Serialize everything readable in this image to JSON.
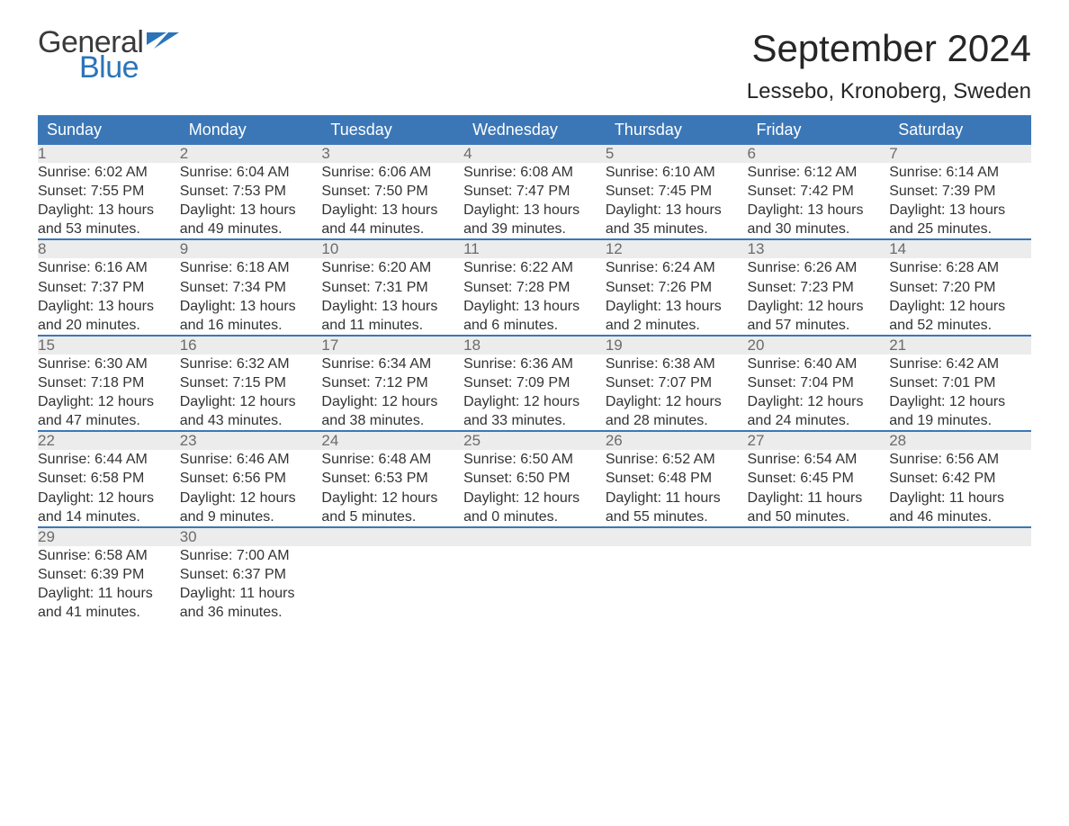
{
  "brand": {
    "word1": "General",
    "word2": "Blue",
    "tri_color": "#2b74b8",
    "word1_color": "#3a3a3a"
  },
  "title": "September 2024",
  "location": "Lessebo, Kronoberg, Sweden",
  "colors": {
    "header_bg": "#3b77b7",
    "header_text": "#ffffff",
    "daynum_bg": "#ececec",
    "daynum_text": "#6b6b6b",
    "body_text": "#333333",
    "rule": "#3b77b7",
    "page_bg": "#ffffff"
  },
  "fonts": {
    "title_size_pt": 32,
    "location_size_pt": 18,
    "th_size_pt": 14,
    "cell_size_pt": 12
  },
  "weekdays": [
    "Sunday",
    "Monday",
    "Tuesday",
    "Wednesday",
    "Thursday",
    "Friday",
    "Saturday"
  ],
  "weeks": [
    [
      {
        "n": "1",
        "sunrise": "Sunrise: 6:02 AM",
        "sunset": "Sunset: 7:55 PM",
        "d1": "Daylight: 13 hours",
        "d2": "and 53 minutes."
      },
      {
        "n": "2",
        "sunrise": "Sunrise: 6:04 AM",
        "sunset": "Sunset: 7:53 PM",
        "d1": "Daylight: 13 hours",
        "d2": "and 49 minutes."
      },
      {
        "n": "3",
        "sunrise": "Sunrise: 6:06 AM",
        "sunset": "Sunset: 7:50 PM",
        "d1": "Daylight: 13 hours",
        "d2": "and 44 minutes."
      },
      {
        "n": "4",
        "sunrise": "Sunrise: 6:08 AM",
        "sunset": "Sunset: 7:47 PM",
        "d1": "Daylight: 13 hours",
        "d2": "and 39 minutes."
      },
      {
        "n": "5",
        "sunrise": "Sunrise: 6:10 AM",
        "sunset": "Sunset: 7:45 PM",
        "d1": "Daylight: 13 hours",
        "d2": "and 35 minutes."
      },
      {
        "n": "6",
        "sunrise": "Sunrise: 6:12 AM",
        "sunset": "Sunset: 7:42 PM",
        "d1": "Daylight: 13 hours",
        "d2": "and 30 minutes."
      },
      {
        "n": "7",
        "sunrise": "Sunrise: 6:14 AM",
        "sunset": "Sunset: 7:39 PM",
        "d1": "Daylight: 13 hours",
        "d2": "and 25 minutes."
      }
    ],
    [
      {
        "n": "8",
        "sunrise": "Sunrise: 6:16 AM",
        "sunset": "Sunset: 7:37 PM",
        "d1": "Daylight: 13 hours",
        "d2": "and 20 minutes."
      },
      {
        "n": "9",
        "sunrise": "Sunrise: 6:18 AM",
        "sunset": "Sunset: 7:34 PM",
        "d1": "Daylight: 13 hours",
        "d2": "and 16 minutes."
      },
      {
        "n": "10",
        "sunrise": "Sunrise: 6:20 AM",
        "sunset": "Sunset: 7:31 PM",
        "d1": "Daylight: 13 hours",
        "d2": "and 11 minutes."
      },
      {
        "n": "11",
        "sunrise": "Sunrise: 6:22 AM",
        "sunset": "Sunset: 7:28 PM",
        "d1": "Daylight: 13 hours",
        "d2": "and 6 minutes."
      },
      {
        "n": "12",
        "sunrise": "Sunrise: 6:24 AM",
        "sunset": "Sunset: 7:26 PM",
        "d1": "Daylight: 13 hours",
        "d2": "and 2 minutes."
      },
      {
        "n": "13",
        "sunrise": "Sunrise: 6:26 AM",
        "sunset": "Sunset: 7:23 PM",
        "d1": "Daylight: 12 hours",
        "d2": "and 57 minutes."
      },
      {
        "n": "14",
        "sunrise": "Sunrise: 6:28 AM",
        "sunset": "Sunset: 7:20 PM",
        "d1": "Daylight: 12 hours",
        "d2": "and 52 minutes."
      }
    ],
    [
      {
        "n": "15",
        "sunrise": "Sunrise: 6:30 AM",
        "sunset": "Sunset: 7:18 PM",
        "d1": "Daylight: 12 hours",
        "d2": "and 47 minutes."
      },
      {
        "n": "16",
        "sunrise": "Sunrise: 6:32 AM",
        "sunset": "Sunset: 7:15 PM",
        "d1": "Daylight: 12 hours",
        "d2": "and 43 minutes."
      },
      {
        "n": "17",
        "sunrise": "Sunrise: 6:34 AM",
        "sunset": "Sunset: 7:12 PM",
        "d1": "Daylight: 12 hours",
        "d2": "and 38 minutes."
      },
      {
        "n": "18",
        "sunrise": "Sunrise: 6:36 AM",
        "sunset": "Sunset: 7:09 PM",
        "d1": "Daylight: 12 hours",
        "d2": "and 33 minutes."
      },
      {
        "n": "19",
        "sunrise": "Sunrise: 6:38 AM",
        "sunset": "Sunset: 7:07 PM",
        "d1": "Daylight: 12 hours",
        "d2": "and 28 minutes."
      },
      {
        "n": "20",
        "sunrise": "Sunrise: 6:40 AM",
        "sunset": "Sunset: 7:04 PM",
        "d1": "Daylight: 12 hours",
        "d2": "and 24 minutes."
      },
      {
        "n": "21",
        "sunrise": "Sunrise: 6:42 AM",
        "sunset": "Sunset: 7:01 PM",
        "d1": "Daylight: 12 hours",
        "d2": "and 19 minutes."
      }
    ],
    [
      {
        "n": "22",
        "sunrise": "Sunrise: 6:44 AM",
        "sunset": "Sunset: 6:58 PM",
        "d1": "Daylight: 12 hours",
        "d2": "and 14 minutes."
      },
      {
        "n": "23",
        "sunrise": "Sunrise: 6:46 AM",
        "sunset": "Sunset: 6:56 PM",
        "d1": "Daylight: 12 hours",
        "d2": "and 9 minutes."
      },
      {
        "n": "24",
        "sunrise": "Sunrise: 6:48 AM",
        "sunset": "Sunset: 6:53 PM",
        "d1": "Daylight: 12 hours",
        "d2": "and 5 minutes."
      },
      {
        "n": "25",
        "sunrise": "Sunrise: 6:50 AM",
        "sunset": "Sunset: 6:50 PM",
        "d1": "Daylight: 12 hours",
        "d2": "and 0 minutes."
      },
      {
        "n": "26",
        "sunrise": "Sunrise: 6:52 AM",
        "sunset": "Sunset: 6:48 PM",
        "d1": "Daylight: 11 hours",
        "d2": "and 55 minutes."
      },
      {
        "n": "27",
        "sunrise": "Sunrise: 6:54 AM",
        "sunset": "Sunset: 6:45 PM",
        "d1": "Daylight: 11 hours",
        "d2": "and 50 minutes."
      },
      {
        "n": "28",
        "sunrise": "Sunrise: 6:56 AM",
        "sunset": "Sunset: 6:42 PM",
        "d1": "Daylight: 11 hours",
        "d2": "and 46 minutes."
      }
    ],
    [
      {
        "n": "29",
        "sunrise": "Sunrise: 6:58 AM",
        "sunset": "Sunset: 6:39 PM",
        "d1": "Daylight: 11 hours",
        "d2": "and 41 minutes."
      },
      {
        "n": "30",
        "sunrise": "Sunrise: 7:00 AM",
        "sunset": "Sunset: 6:37 PM",
        "d1": "Daylight: 11 hours",
        "d2": "and 36 minutes."
      },
      null,
      null,
      null,
      null,
      null
    ]
  ]
}
